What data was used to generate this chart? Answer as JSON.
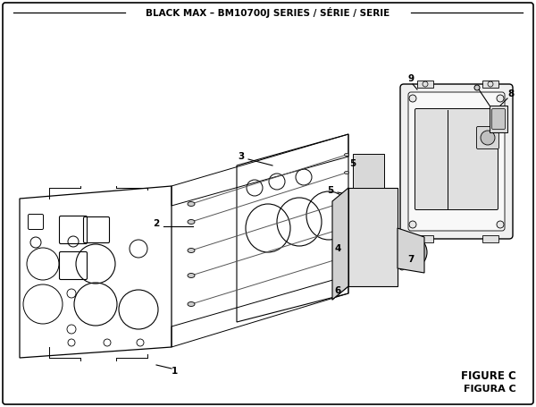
{
  "title": "BLACK MAX – BM10700J SERIES / SÉRIE / SERIE",
  "title_fontsize": 7.5,
  "background_color": "#ffffff",
  "figure_label": "FIGURE C",
  "figure_label2": "FIGURA C",
  "figure_label_fontsize": 8.5
}
